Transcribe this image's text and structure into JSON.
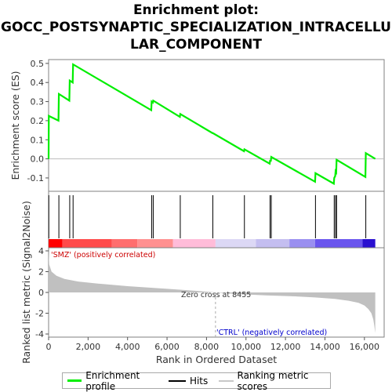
{
  "title_lines": [
    "Enrichment plot:",
    "GOCC_POSTSYNAPTIC_SPECIALIZATION_INTRACELLU",
    "LAR_COMPONENT"
  ],
  "colors": {
    "es_line": "#00ee00",
    "hits": "#000000",
    "metric_fill": "#c0c0c0",
    "pos_label": "#cc0000",
    "neg_label": "#0000cc",
    "zero_line": "#bbbbbb"
  },
  "chart_data": [
    {
      "type": "line",
      "name": "enrichment",
      "ylabel": "Enrichment score (ES)",
      "ylim": [
        -0.17,
        0.52
      ],
      "xlim": [
        0,
        17000
      ],
      "yticks": [
        -0.1,
        0.0,
        0.1,
        0.2,
        0.3,
        0.4,
        0.5
      ],
      "ytick_labels": [
        "-0.1",
        "0.0",
        "0.1",
        "0.2",
        "0.3",
        "0.4",
        "0.5"
      ],
      "grid": false,
      "series": [
        {
          "name": "Enrichment profile",
          "x": [
            0,
            10,
            500,
            520,
            1050,
            1070,
            1220,
            1240,
            5200,
            5220,
            5280,
            5300,
            6650,
            6670,
            8300,
            8320,
            9900,
            9920,
            11200,
            11220,
            11260,
            11280,
            13500,
            13520,
            14450,
            14470,
            14520,
            14540,
            14570,
            14590,
            16050,
            16070,
            16550
          ],
          "y": [
            0.0,
            0.225,
            0.2,
            0.34,
            0.305,
            0.41,
            0.4,
            0.495,
            0.255,
            0.3,
            0.295,
            0.305,
            0.22,
            0.235,
            0.135,
            0.135,
            0.04,
            0.05,
            -0.025,
            -0.01,
            -0.01,
            0.01,
            -0.12,
            -0.075,
            -0.13,
            -0.1,
            -0.09,
            -0.065,
            -0.07,
            -0.005,
            -0.095,
            0.03,
            0.0
          ]
        }
      ]
    },
    {
      "type": "bar",
      "name": "hits",
      "xlim": [
        0,
        17000
      ],
      "positions": [
        10,
        520,
        1070,
        1240,
        5220,
        5300,
        6670,
        8320,
        9920,
        11220,
        11280,
        13520,
        14470,
        14540,
        14590,
        16070
      ]
    },
    {
      "type": "area",
      "name": "ranked_metric",
      "ylabel": "Ranked list metric (Signal2Noise)",
      "xlabel": "Rank in Ordered Dataset",
      "xlim": [
        0,
        17000
      ],
      "ylim": [
        -4.3,
        4.3
      ],
      "yticks": [
        -4,
        -2,
        0,
        2,
        4
      ],
      "ytick_labels": [
        "-4",
        "-2",
        "0",
        "2",
        "4"
      ],
      "xticks": [
        0,
        2000,
        4000,
        6000,
        8000,
        10000,
        12000,
        14000,
        16000
      ],
      "xtick_labels": [
        "0",
        "2,000",
        "4,000",
        "6,000",
        "8,000",
        "10,000",
        "12,000",
        "14,000",
        "16,000"
      ],
      "x": [
        0,
        30,
        150,
        400,
        800,
        1500,
        2500,
        4000,
        6000,
        7500,
        8455,
        9500,
        11000,
        12500,
        13500,
        14500,
        15200,
        15700,
        16000,
        16200,
        16350,
        16450,
        16500,
        16550
      ],
      "y": [
        4.0,
        2.7,
        2.0,
        1.6,
        1.3,
        1.05,
        0.85,
        0.6,
        0.35,
        0.15,
        0.0,
        -0.15,
        -0.28,
        -0.38,
        -0.48,
        -0.62,
        -0.8,
        -1.0,
        -1.25,
        -1.6,
        -2.0,
        -2.6,
        -3.2,
        -3.9
      ],
      "zero_cross_label": "Zero cross at 8455",
      "zero_cross": 8455,
      "pos_label": "'SMZ' (positively correlated)",
      "neg_label": "'CTRL' (negatively correlated)"
    }
  ],
  "colorbar": {
    "xlim": [
      0,
      17000
    ],
    "segments": [
      {
        "x0": 0,
        "x1": 700,
        "color": "#ff0000"
      },
      {
        "x0": 700,
        "x1": 3200,
        "color": "#ff4a4a"
      },
      {
        "x0": 3200,
        "x1": 4500,
        "color": "#ff6e6e"
      },
      {
        "x0": 4500,
        "x1": 6300,
        "color": "#ff9090"
      },
      {
        "x0": 6300,
        "x1": 8455,
        "color": "#ffbcd9"
      },
      {
        "x0": 8455,
        "x1": 10500,
        "color": "#dcd8f5"
      },
      {
        "x0": 10500,
        "x1": 12200,
        "color": "#c4bef0"
      },
      {
        "x0": 12200,
        "x1": 13500,
        "color": "#9a8ff0"
      },
      {
        "x0": 13500,
        "x1": 15900,
        "color": "#6a55ee"
      },
      {
        "x0": 15900,
        "x1": 16550,
        "color": "#2a10d0"
      }
    ]
  },
  "legend": {
    "items": [
      {
        "label": "Enrichment profile",
        "color": "#00ee00"
      },
      {
        "label": "Hits",
        "color": "#000000"
      },
      {
        "label": "Ranking metric scores",
        "color": "#c8c8c8"
      }
    ]
  }
}
